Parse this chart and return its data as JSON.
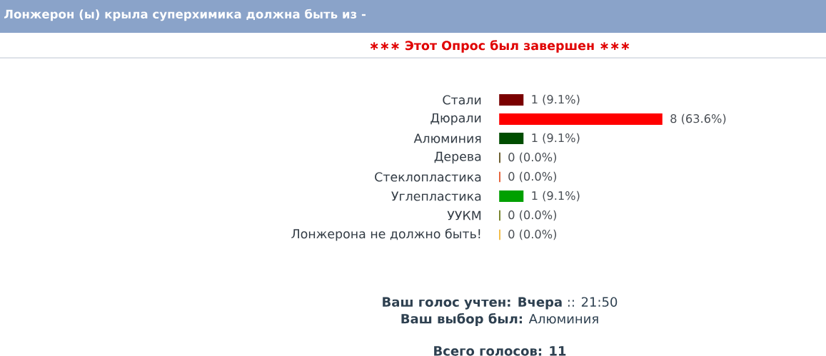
{
  "chart_data": {
    "type": "bar",
    "orientation": "horizontal",
    "title": "Лонжерон (ы) крыла суперхимика должна быть из -",
    "subtitle": "∗∗∗ Этот Опрос был завершен ∗∗∗",
    "categories": [
      "Стали",
      "Дюрали",
      "Алюминия",
      "Дерева",
      "Стеклопластика",
      "Углепластика",
      "УУКМ",
      "Лонжерона не должно быть!"
    ],
    "values": [
      9.1,
      63.6,
      9.1,
      0.0,
      0.0,
      9.1,
      0.0,
      0.0
    ],
    "colors": [
      "#7a0000",
      "#ff0000",
      "#004d00",
      "#4a3a00",
      "#e04010",
      "#00a000",
      "#5a6a00",
      "#f0b020"
    ],
    "value_labels": [
      "1 (9.1%)",
      "8 (63.6%)",
      "1 (9.1%)",
      "0 (0.0%)",
      "0 (0.0%)",
      "1 (9.1%)",
      "0 (0.0%)",
      "0 (0.0%)"
    ],
    "annotations": [
      "**Ваш голос учтен: Вчера** :: 21:50",
      "**Ваш выбор был:** Алюминия",
      "Всего голосов: 11"
    ]
  }
}
